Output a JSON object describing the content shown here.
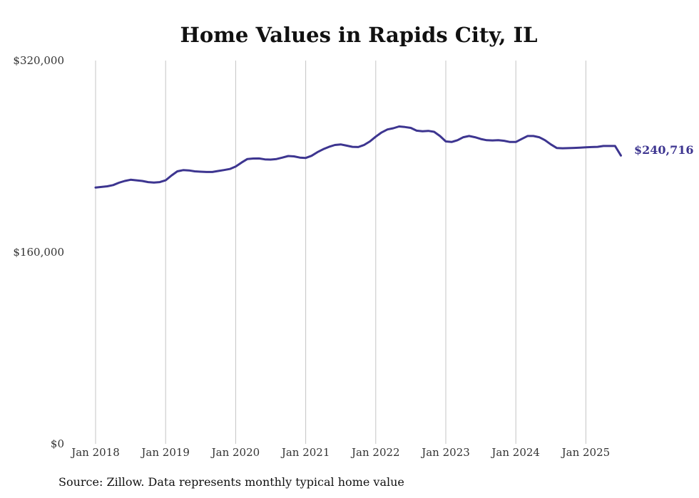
{
  "chart_data": {
    "type": "line",
    "title": "Home Values in Rapids City, IL",
    "xlabel": "",
    "ylabel": "",
    "ylim": [
      0,
      320000
    ],
    "xlim": [
      "2018-01",
      "2025-07"
    ],
    "y_ticks": [
      "$320,000",
      "$160,000",
      "$0"
    ],
    "x_ticks": [
      "Jan 2018",
      "Jan 2019",
      "Jan 2020",
      "Jan 2021",
      "Jan 2022",
      "Jan 2023",
      "Jan 2024",
      "Jan 2025"
    ],
    "grid": "vertical",
    "line_color": "#3d3590",
    "end_label": "$240,716",
    "series": [
      {
        "x": [
          "2018-01",
          "2018-02",
          "2018-03",
          "2018-04",
          "2018-05",
          "2018-06",
          "2018-07",
          "2018-08",
          "2018-09",
          "2018-10",
          "2018-11",
          "2018-12",
          "2019-01",
          "2019-02",
          "2019-03",
          "2019-04",
          "2019-05",
          "2019-06",
          "2019-07",
          "2019-08",
          "2019-09",
          "2019-10",
          "2019-11",
          "2019-12",
          "2020-01",
          "2020-02",
          "2020-03",
          "2020-04",
          "2020-05",
          "2020-06",
          "2020-07",
          "2020-08",
          "2020-09",
          "2020-10",
          "2020-11",
          "2020-12",
          "2021-01",
          "2021-02",
          "2021-03",
          "2021-04",
          "2021-05",
          "2021-06",
          "2021-07",
          "2021-08",
          "2021-09",
          "2021-10",
          "2021-11",
          "2021-12",
          "2022-01",
          "2022-02",
          "2022-03",
          "2022-04",
          "2022-05",
          "2022-06",
          "2022-07",
          "2022-08",
          "2022-09",
          "2022-10",
          "2022-11",
          "2022-12",
          "2023-01",
          "2023-02",
          "2023-03",
          "2023-04",
          "2023-05",
          "2023-06",
          "2023-07",
          "2023-08",
          "2023-09",
          "2023-10",
          "2023-11",
          "2023-12",
          "2024-01",
          "2024-02",
          "2024-03",
          "2024-04",
          "2024-05",
          "2024-06",
          "2024-07",
          "2024-08",
          "2024-09",
          "2024-10",
          "2024-11",
          "2024-12",
          "2025-01",
          "2025-02",
          "2025-03",
          "2025-04",
          "2025-05",
          "2025-06",
          "2025-07"
        ],
        "values": [
          214000,
          214500,
          215000,
          216000,
          218000,
          219500,
          220500,
          220000,
          219500,
          218500,
          218200,
          218500,
          220000,
          224000,
          227500,
          228500,
          228300,
          227500,
          227200,
          227000,
          227000,
          227800,
          228600,
          229500,
          231500,
          234800,
          237800,
          238200,
          238300,
          237500,
          237300,
          237800,
          239000,
          240300,
          240000,
          239000,
          238700,
          240500,
          243500,
          246000,
          248000,
          249500,
          250000,
          249000,
          248000,
          247800,
          249500,
          252500,
          256500,
          260000,
          262500,
          263500,
          265000,
          264500,
          263800,
          261500,
          261000,
          261300,
          260500,
          257000,
          252500,
          252000,
          253500,
          256000,
          257000,
          256000,
          254500,
          253500,
          253300,
          253500,
          253000,
          252000,
          252000,
          254500,
          257000,
          257000,
          256000,
          253500,
          250000,
          247000,
          246800,
          246900,
          247100,
          247300,
          247600,
          247800,
          248000,
          248700,
          248700,
          248700,
          240716
        ]
      }
    ]
  },
  "source_note": "Source: Zillow. Data represents monthly typical home value"
}
